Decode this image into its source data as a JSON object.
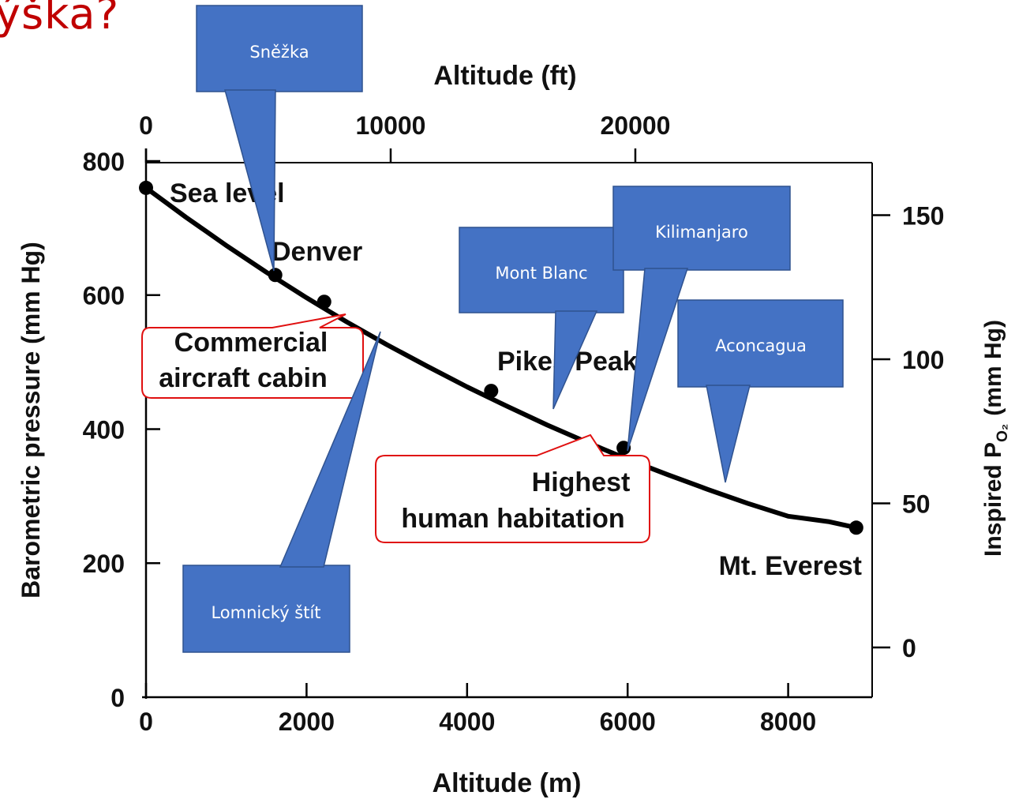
{
  "slide_title": "ýška?",
  "chart_data": {
    "type": "line",
    "xlabel": "Altitude (m)",
    "x2label": "Altitude (ft)",
    "ylabel": "Barometric pressure (mm Hg)",
    "y2label": "Inspired P",
    "y2label_sub": "O₂",
    "y2label_unit": "(mm Hg)",
    "xlim": [
      0,
      9000
    ],
    "ylim": [
      0,
      800
    ],
    "x_ticks": [
      0,
      2000,
      4000,
      6000,
      8000
    ],
    "y_ticks": [
      0,
      200,
      400,
      600,
      800
    ],
    "x2_ticks": [
      0,
      10000,
      20000
    ],
    "y2_ticks": [
      0,
      50,
      100,
      150
    ],
    "grid": false,
    "series": [
      {
        "x": [
          0,
          250,
          500,
          750,
          1000,
          1250,
          1500,
          1750,
          2000,
          2250,
          2500,
          2750,
          3000,
          3500,
          4000,
          4500,
          5000,
          5500,
          6000,
          6500,
          7000,
          7500,
          8000,
          8500,
          8848
        ],
        "values": [
          760,
          738,
          716,
          695,
          674,
          654,
          634,
          615,
          596,
          578,
          560,
          543,
          526,
          494,
          463,
          434,
          406,
          380,
          355,
          332,
          310,
          289,
          270,
          262,
          253
        ]
      }
    ],
    "points": [
      {
        "label": "Sea level",
        "x": 0,
        "y": 760
      },
      {
        "label": "Denver",
        "x": 1610,
        "y": 630
      },
      {
        "label": "",
        "x": 2220,
        "y": 590
      },
      {
        "label": "Pikes Peak",
        "x": 4300,
        "y": 457
      },
      {
        "label": "",
        "x": 5950,
        "y": 372
      },
      {
        "label": "Mt. Everest",
        "x": 8848,
        "y": 253
      }
    ],
    "annotations": {
      "commercial": [
        "Commercial",
        "aircraft cabin"
      ],
      "highest": [
        "Highest",
        "human habitation"
      ]
    },
    "callouts": [
      "Sněžka",
      "Mont Blanc",
      "Kilimanjaro",
      "Aconcagua",
      "Lomnický štít"
    ],
    "colors": {
      "line": "#000000",
      "callout": "#4472c4",
      "annotation_border": "#e01010",
      "title": "#c00000"
    }
  }
}
